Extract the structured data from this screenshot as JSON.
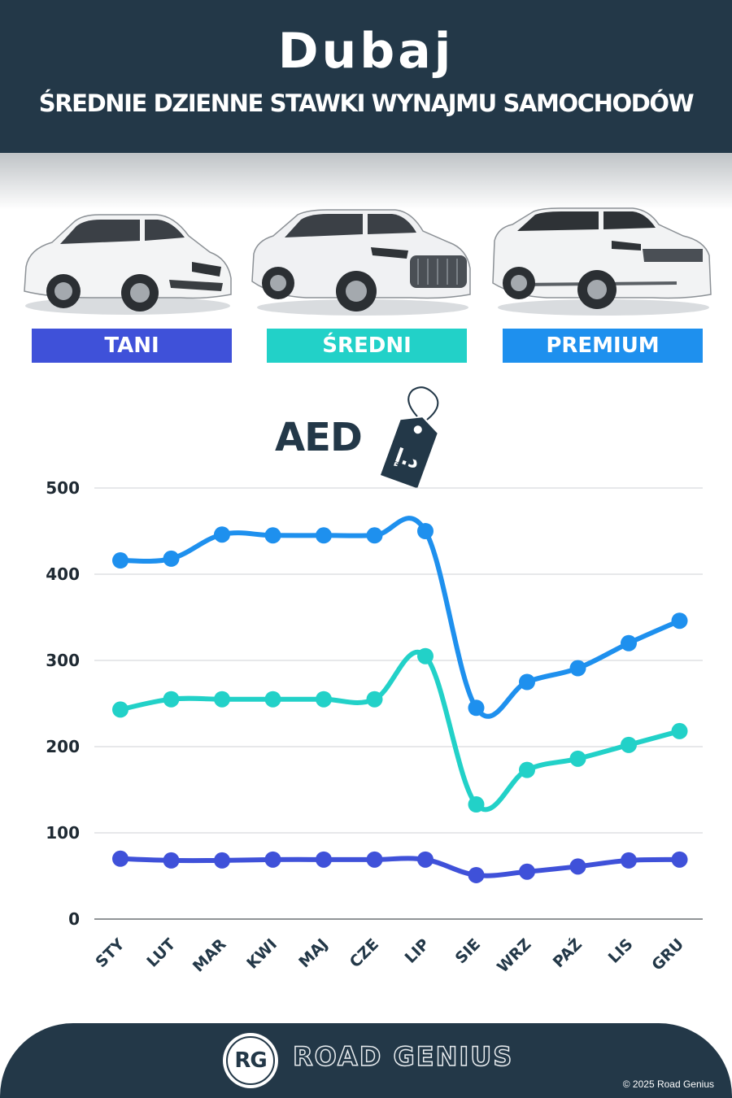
{
  "header": {
    "city": "Dubaj",
    "subtitle": "ŚREDNIE DZIENNE STAWKI WYNAJMU SAMOCHODÓW"
  },
  "categories": [
    {
      "label": "TANI",
      "color": "#3f51d9"
    },
    {
      "label": "ŚREDNI",
      "color": "#22d1c8"
    },
    {
      "label": "PREMIUM",
      "color": "#1e90ee"
    }
  ],
  "currency": "AED",
  "chart_data": {
    "type": "line",
    "categories": [
      "STY",
      "LUT",
      "MAR",
      "KWI",
      "MAJ",
      "CZE",
      "LIP",
      "SIE",
      "WRZ",
      "PAŹ",
      "LIS",
      "GRU"
    ],
    "series": [
      {
        "name": "PREMIUM",
        "color": "#1e90ee",
        "values": [
          416,
          418,
          446,
          445,
          445,
          445,
          450,
          245,
          275,
          291,
          320,
          346
        ]
      },
      {
        "name": "ŚREDNI",
        "color": "#22d1c8",
        "values": [
          243,
          255,
          255,
          255,
          255,
          255,
          305,
          133,
          173,
          186,
          202,
          218
        ]
      },
      {
        "name": "TANI",
        "color": "#3f51d9",
        "values": [
          70,
          68,
          68,
          69,
          69,
          69,
          69,
          51,
          55,
          61,
          68,
          69
        ]
      }
    ],
    "yticks": [
      0,
      100,
      200,
      300,
      400,
      500
    ],
    "ylim": [
      0,
      500
    ],
    "grid": true
  },
  "footer": {
    "logo": "RG",
    "brand": "ROAD GENIUS",
    "copyright": "© 2025 Road Genius"
  }
}
